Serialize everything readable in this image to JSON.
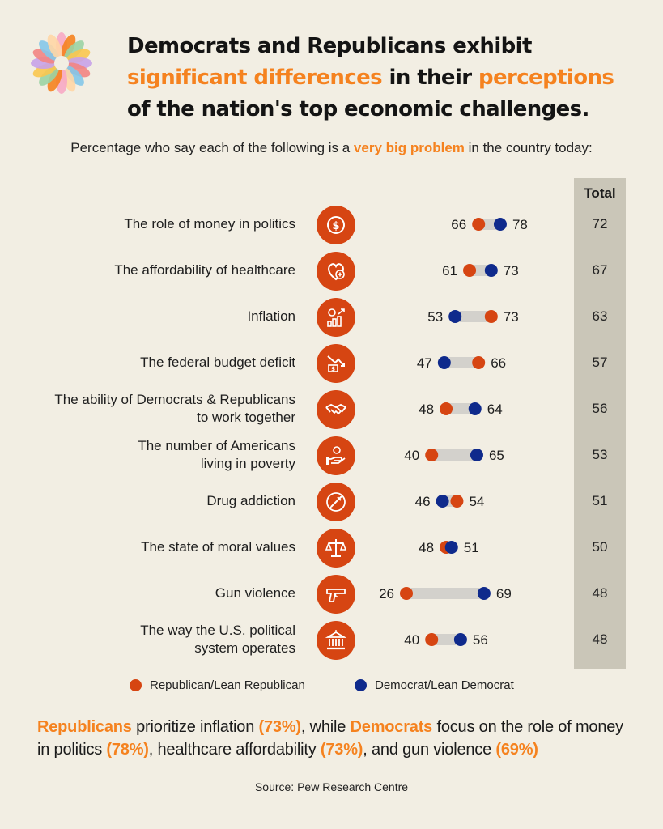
{
  "title": {
    "part1": "Democrats and Republicans exhibit",
    "hl1": "significant differences",
    "part2": " in their ",
    "hl2": "perceptions",
    "part3": "of the nation's top economic challenges."
  },
  "subtitle": {
    "before": "Percentage who say each of the following is a ",
    "highlight": "very big problem",
    "after": " in the country today:"
  },
  "colors": {
    "republican": "#d64512",
    "democrat": "#0f2a8c",
    "accent": "#f5821f",
    "bar": "#d3d1cc"
  },
  "chart_data": {
    "type": "dot",
    "total_header": "Total",
    "series": [
      {
        "name": "Republican/Lean Republican",
        "color": "#d64512"
      },
      {
        "name": "Democrat/Lean Democrat",
        "color": "#0f2a8c"
      }
    ],
    "rows": [
      {
        "label_lines": [
          "The role of money in politics"
        ],
        "icon": "dollar-icon",
        "republican": 66,
        "democrat": 78,
        "total": 72
      },
      {
        "label_lines": [
          "The affordability of healthcare"
        ],
        "icon": "heart-plus-icon",
        "republican": 61,
        "democrat": 73,
        "total": 67
      },
      {
        "label_lines": [
          "Inflation"
        ],
        "icon": "rising-coins-icon",
        "republican": 73,
        "democrat": 53,
        "total": 63
      },
      {
        "label_lines": [
          "The federal budget deficit"
        ],
        "icon": "declining-money-icon",
        "republican": 66,
        "democrat": 47,
        "total": 57
      },
      {
        "label_lines": [
          "The ability of Democrats & Republicans",
          "to work together"
        ],
        "icon": "handshake-icon",
        "republican": 48,
        "democrat": 64,
        "total": 56
      },
      {
        "label_lines": [
          "The number of Americans",
          "living in poverty"
        ],
        "icon": "hand-coin-icon",
        "republican": 40,
        "democrat": 65,
        "total": 53
      },
      {
        "label_lines": [
          "Drug addiction"
        ],
        "icon": "syringe-icon",
        "republican": 54,
        "democrat": 46,
        "total": 51
      },
      {
        "label_lines": [
          "The state of moral values"
        ],
        "icon": "scales-icon",
        "republican": 48,
        "democrat": 51,
        "total": 50
      },
      {
        "label_lines": [
          "Gun violence"
        ],
        "icon": "gun-icon",
        "republican": 26,
        "democrat": 69,
        "total": 48
      },
      {
        "label_lines": [
          "The way the U.S. political",
          "system operates"
        ],
        "icon": "capitol-icon",
        "republican": 40,
        "democrat": 56,
        "total": 48
      }
    ]
  },
  "legend": {
    "republican": "Republican/Lean Republican",
    "democrat": "Democrat/Lean Democrat"
  },
  "takeaway": {
    "p1": "Republicans",
    "p2": " prioritize inflation ",
    "p3": "(73%)",
    "p4": ", while ",
    "p5": "Democrats",
    "p6": " focus on the role of money in politics ",
    "p7": "(78%)",
    "p8": ", healthcare affordability ",
    "p9": "(73%)",
    "p10": ", and gun violence ",
    "p11": "(69%)"
  },
  "source": "Source: Pew Research Centre"
}
